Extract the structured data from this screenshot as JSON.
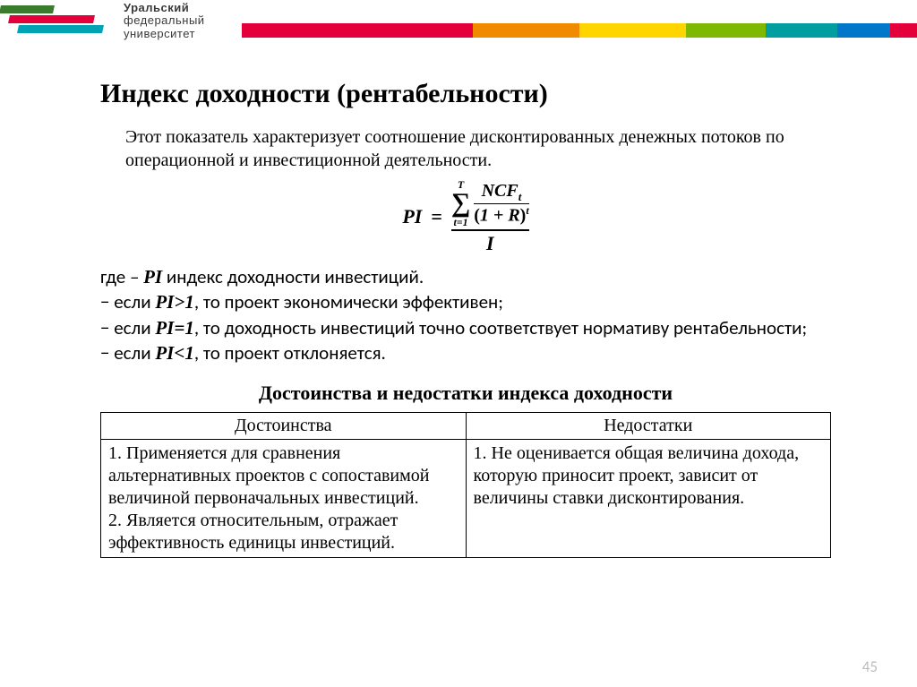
{
  "header": {
    "logo_line1": "Уральский",
    "logo_line2": "федеральный",
    "logo_line3": "университет",
    "left_stripe_colors": [
      "#3a7b2e",
      "#e4003a",
      "#00a3b4"
    ],
    "rainbow_colors": [
      "#e4003a",
      "#f08b00",
      "#ffd500",
      "#7fb800",
      "#009e9e",
      "#0077c8",
      "#e4003a"
    ]
  },
  "title": "Индекс доходности (рентабельности)",
  "intro": "Этот показатель характеризует соотношение дисконтированных денежных потоков по операционной и инвестиционной деятельности.",
  "formula": {
    "lhs": "PI",
    "eq": "=",
    "sum_upper": "T",
    "sum_lower": "t=1",
    "ncf": "NCF",
    "ncf_sub": "t",
    "one_plus_r": "1 + R",
    "exp": "t",
    "denom": "I"
  },
  "explain": {
    "l1_a": "где – ",
    "l1_b": "PI",
    "l1_c": " индекс доходности инвестиций.",
    "l2_a": "− если ",
    "l2_b": "PI>1",
    "l2_c": ", то проект экономически эффективен;",
    "l3_a": "− если ",
    "l3_b": "PI=1",
    "l3_c": ", то доходность инвестиций точно соответствует нормативу рентабельности;",
    "l4_a": "− если ",
    "l4_b": "PI<1",
    "l4_c": ", то проект отклоняется."
  },
  "subhead": "Достоинства и недостатки индекса доходности",
  "table": {
    "col1_header": "Достоинства",
    "col2_header": "Недостатки",
    "col1_body": "1. Применяется для сравнения альтернативных проектов с сопоставимой величиной первоначальных инвестиций.\n2. Является относительным, отражает эффективность единицы инвестиций.",
    "col2_body": "1. Не оценивается общая величина дохода, которую приносит проект, зависит от величины ставки дисконтирования."
  },
  "page_number": "45"
}
